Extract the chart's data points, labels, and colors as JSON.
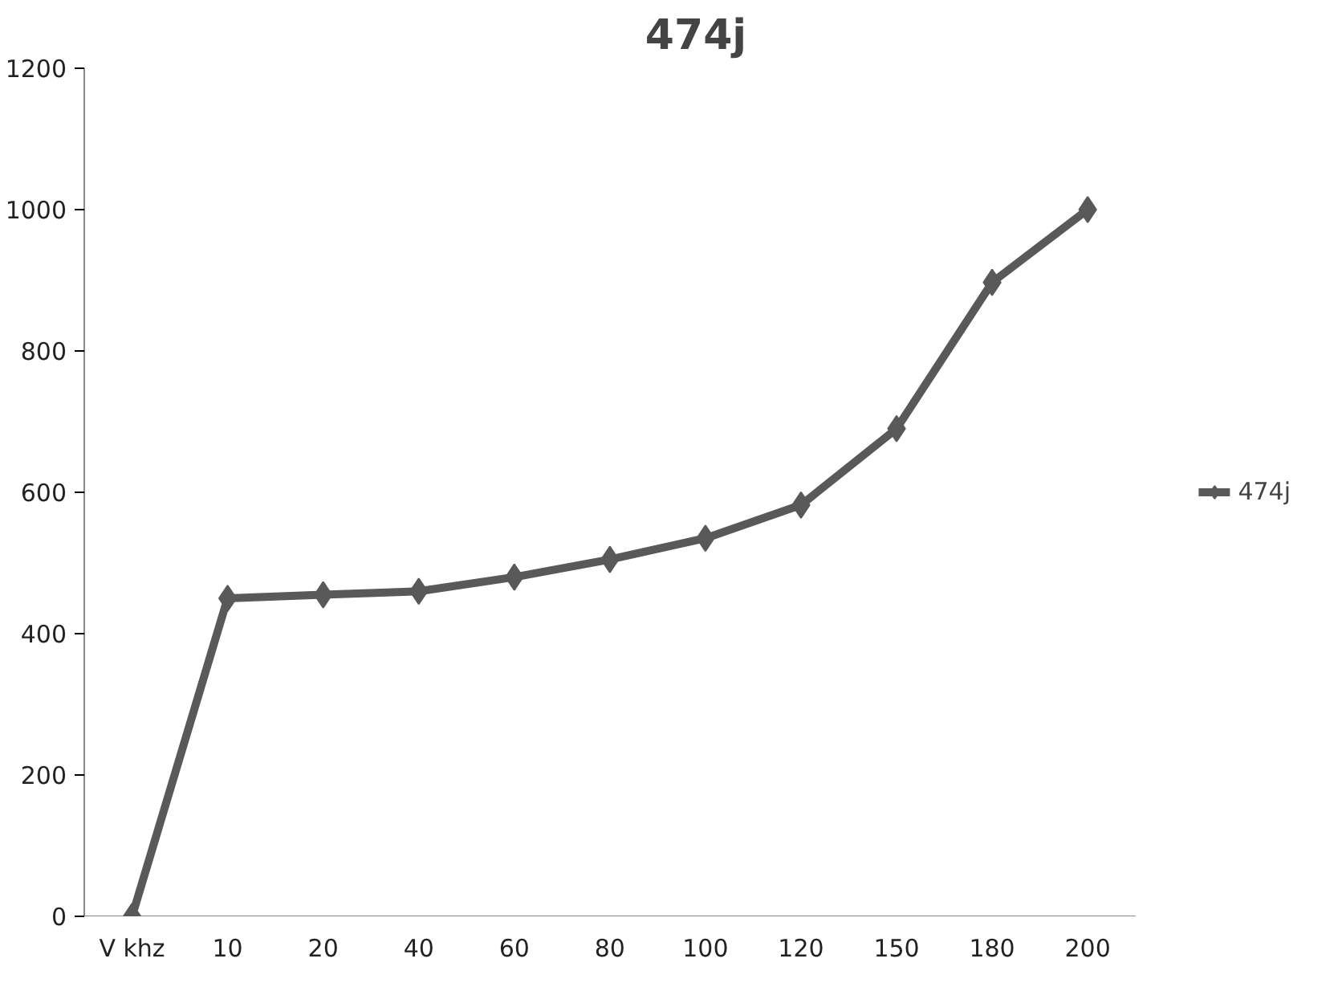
{
  "chart_data": {
    "type": "line",
    "title": "474j",
    "categories": [
      "V khz",
      "10",
      "20",
      "40",
      "60",
      "80",
      "100",
      "120",
      "150",
      "180",
      "200"
    ],
    "series": [
      {
        "name": "474j",
        "color": "#595959",
        "values": [
          0,
          450,
          455,
          460,
          480,
          505,
          535,
          582,
          690,
          897,
          1000
        ]
      }
    ],
    "ylim": [
      0,
      1200
    ],
    "yticks": [
      0,
      200,
      400,
      600,
      800,
      1000,
      1200
    ],
    "grid": false,
    "legend": "right",
    "marker": "diamond",
    "line_style": "solid"
  }
}
